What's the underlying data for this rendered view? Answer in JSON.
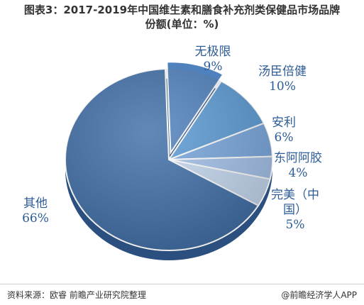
{
  "header": {
    "title_line1": "图表3：2017-2019年中国维生素和膳食补充剂类保健品市场品牌",
    "title_line2": "份额(单位：%)"
  },
  "chart_data": {
    "type": "pie",
    "title": "图表3：2017-2019年中国维生素和膳食补充剂类保健品市场品牌份额(单位：%)",
    "slices": [
      {
        "name": "无极限",
        "value": 9,
        "color": "#4f81bd",
        "explode": true
      },
      {
        "name": "汤臣倍健",
        "value": 10,
        "color": "#5b9bd5"
      },
      {
        "name": "安利",
        "value": 6,
        "color": "#79a7de"
      },
      {
        "name": "东阿阿胶",
        "value": 4,
        "color": "#a4c2ea"
      },
      {
        "name": "完美（中国）",
        "value": 5,
        "color": "#c6d9f1"
      },
      {
        "name": "其他",
        "value": 66,
        "color": "#3f6fa8"
      }
    ],
    "labels": [
      {
        "lines": [
          "无极限",
          "9%"
        ]
      },
      {
        "lines": [
          "汤臣倍健",
          "10%"
        ]
      },
      {
        "lines": [
          "安利",
          "6%"
        ]
      },
      {
        "lines": [
          "东阿阿胶",
          "4%"
        ]
      },
      {
        "lines": [
          "完美（中",
          "国）",
          "5%"
        ]
      },
      {
        "lines": [
          "其他",
          "66%"
        ]
      }
    ]
  },
  "footer": {
    "source": "资料来源：欧睿 前瞻产业研究院整理",
    "brand": "@前瞻经济学人APP"
  }
}
